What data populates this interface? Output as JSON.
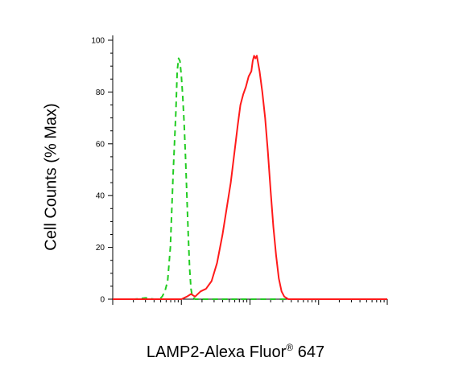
{
  "chart_data": {
    "type": "line",
    "xlabel_main": "LAMP2-Alexa Fluor",
    "xlabel_sup": "®",
    "xlabel_tail": " 647",
    "ylabel": "Cell Counts (% Max)",
    "ylim": [
      0,
      100
    ],
    "y_ticks": [
      "0",
      "20",
      "40",
      "60",
      "80",
      "100"
    ],
    "x_scale": "log",
    "x_decades": 4,
    "grid": false,
    "series": [
      {
        "color": "#22cc22",
        "style": "dashed",
        "points": [
          [
            0.0,
            0
          ],
          [
            0.08,
            0
          ],
          [
            0.12,
            0.5
          ],
          [
            0.15,
            0
          ],
          [
            0.17,
            0
          ],
          [
            0.18,
            1
          ],
          [
            0.19,
            3
          ],
          [
            0.2,
            7
          ],
          [
            0.21,
            20
          ],
          [
            0.22,
            48
          ],
          [
            0.23,
            72
          ],
          [
            0.235,
            88
          ],
          [
            0.24,
            93
          ],
          [
            0.245,
            92
          ],
          [
            0.25,
            86
          ],
          [
            0.255,
            78
          ],
          [
            0.26,
            68
          ],
          [
            0.265,
            55
          ],
          [
            0.27,
            40
          ],
          [
            0.275,
            25
          ],
          [
            0.28,
            12
          ],
          [
            0.285,
            4
          ],
          [
            0.29,
            1
          ],
          [
            0.3,
            0
          ],
          [
            0.32,
            0
          ],
          [
            0.4,
            0
          ],
          [
            0.6,
            0
          ],
          [
            1.0,
            0
          ]
        ]
      },
      {
        "color": "#ff1a1a",
        "style": "solid",
        "points": [
          [
            0.0,
            0
          ],
          [
            0.25,
            0
          ],
          [
            0.27,
            1
          ],
          [
            0.285,
            2
          ],
          [
            0.3,
            1
          ],
          [
            0.32,
            3
          ],
          [
            0.34,
            4
          ],
          [
            0.36,
            7
          ],
          [
            0.38,
            14
          ],
          [
            0.4,
            25
          ],
          [
            0.415,
            35
          ],
          [
            0.43,
            45
          ],
          [
            0.445,
            58
          ],
          [
            0.455,
            67
          ],
          [
            0.465,
            75
          ],
          [
            0.475,
            79
          ],
          [
            0.485,
            82
          ],
          [
            0.495,
            86
          ],
          [
            0.505,
            88
          ],
          [
            0.51,
            92
          ],
          [
            0.515,
            94
          ],
          [
            0.52,
            93
          ],
          [
            0.525,
            94
          ],
          [
            0.53,
            91
          ],
          [
            0.535,
            88
          ],
          [
            0.545,
            80
          ],
          [
            0.555,
            70
          ],
          [
            0.565,
            57
          ],
          [
            0.575,
            42
          ],
          [
            0.585,
            28
          ],
          [
            0.595,
            17
          ],
          [
            0.605,
            8
          ],
          [
            0.615,
            3
          ],
          [
            0.625,
            1
          ],
          [
            0.64,
            0
          ],
          [
            0.7,
            0
          ],
          [
            1.0,
            0
          ]
        ]
      }
    ]
  }
}
